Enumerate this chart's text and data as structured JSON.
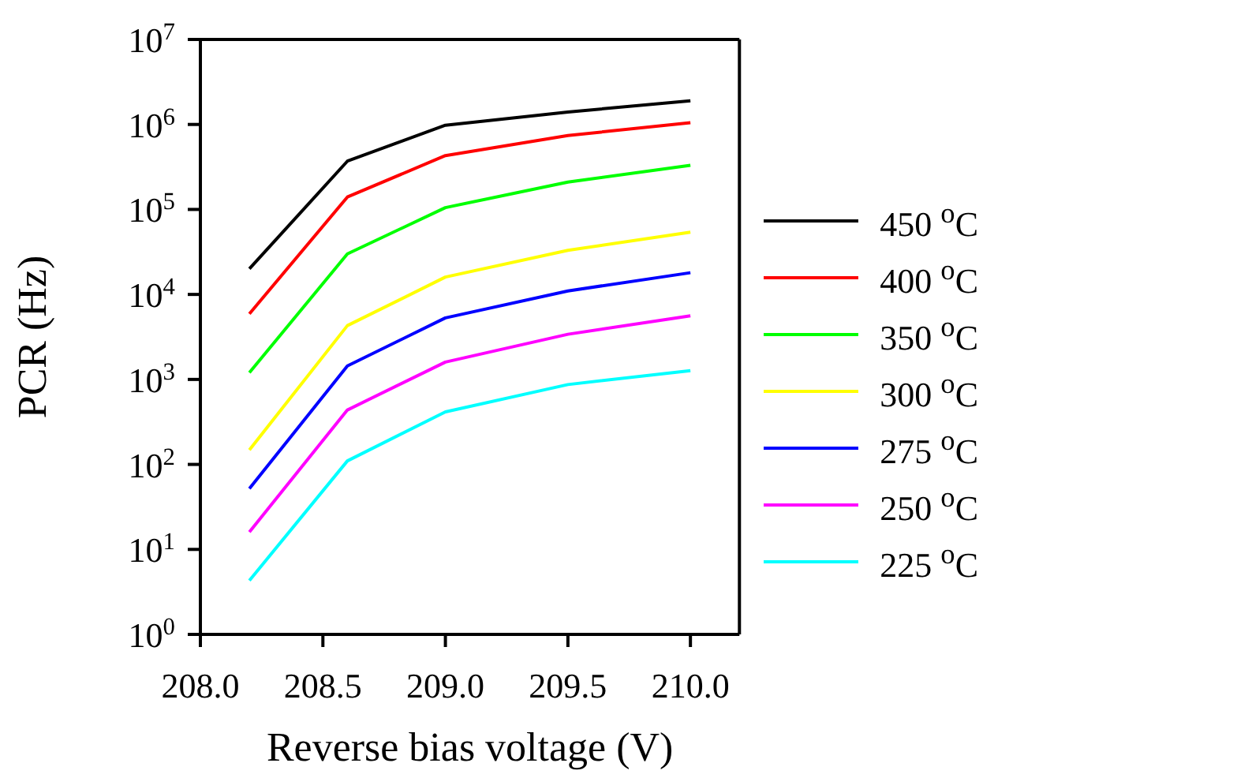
{
  "chart_data": {
    "type": "line",
    "xlabel": "Reverse bias voltage (V)",
    "ylabel": "PCR (Hz)",
    "x": [
      208.2,
      208.6,
      209.0,
      209.5,
      210.0
    ],
    "xlim": [
      208.0,
      210.2
    ],
    "xticks": [
      {
        "value": 208,
        "label": "208.0"
      },
      {
        "value": 208.5,
        "label": "208.5"
      },
      {
        "value": 209,
        "label": "209.0"
      },
      {
        "value": 209.5,
        "label": "209.5"
      },
      {
        "value": 210,
        "label": "210.0"
      }
    ],
    "ylim": [
      1,
      10000000
    ],
    "yticks": [
      {
        "value": 1,
        "label": "10$^{0}$"
      },
      {
        "value": 10,
        "label": "10$^{1}$"
      },
      {
        "value": 100,
        "label": "10$^{2}$"
      },
      {
        "value": 1000,
        "label": "10$^{3}$"
      },
      {
        "value": 10000,
        "label": "10$^{4}$"
      },
      {
        "value": 100000,
        "label": "10$^{5}$"
      },
      {
        "value": 1000000,
        "label": "10$^{6}$"
      },
      {
        "value": 10000000,
        "label": "10$^{7}$"
      }
    ],
    "log": "y",
    "legend": "right",
    "marker": "none",
    "line_style": "solid",
    "series": [
      {
        "name": "450 $^{o}$C",
        "color": "#000000",
        "values": [
          20000,
          370000,
          980000,
          1400000,
          1900000
        ]
      },
      {
        "name": "400 $^{o}$C",
        "color": "#ff0000",
        "values": [
          5900,
          140000,
          430000,
          740000,
          1050000
        ]
      },
      {
        "name": "350 $^{o}$C",
        "color": "#00ff00",
        "values": [
          1200,
          30000,
          105000,
          210000,
          330000
        ]
      },
      {
        "name": "300 $^{o}$C",
        "color": "#ffff00",
        "values": [
          148,
          4300,
          16000,
          33000,
          54000
        ]
      },
      {
        "name": "275 $^{o}$C",
        "color": "#0000ff",
        "values": [
          52,
          1440,
          5300,
          11000,
          18000
        ]
      },
      {
        "name": "250 $^{o}$C",
        "color": "#ff00ff",
        "values": [
          16,
          437,
          1600,
          3400,
          5600
        ]
      },
      {
        "name": "225 $^{o}$C",
        "color": "#00ffff",
        "values": [
          4.3,
          110,
          415,
          870,
          1270
        ]
      }
    ]
  }
}
